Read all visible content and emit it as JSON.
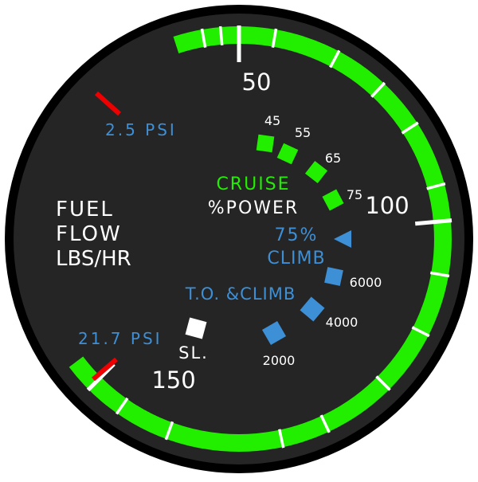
{
  "colors": {
    "face": "#252525",
    "bezel": "#000000",
    "arc": "#22ee00",
    "tick": "#ffffff",
    "limit": "#ee0000",
    "cruise_green": "#22ee00",
    "climb_blue": "#3d8fd6",
    "text_white": "#ffffff",
    "takeoff_marker": "#ffffff"
  },
  "gauge": {
    "title_lines": [
      "FUEL",
      "FLOW",
      "LBS/HR"
    ],
    "scale_labels": [
      "50",
      "100",
      "150"
    ],
    "limits": {
      "low_psi_label": "2.5 PSI",
      "high_psi_label": "21.7 PSI"
    },
    "cruise": {
      "heading": "CRUISE",
      "subheading": "%POWER",
      "marks": [
        "45",
        "55",
        "65",
        "75"
      ]
    },
    "climb": {
      "percent_label": "75%",
      "heading": "CLIMB",
      "altitude_marks": [
        "6000",
        "4000",
        "2000"
      ]
    },
    "takeoff": {
      "heading": "T.O. &CLIMB",
      "sea_level_label": "SL."
    }
  }
}
